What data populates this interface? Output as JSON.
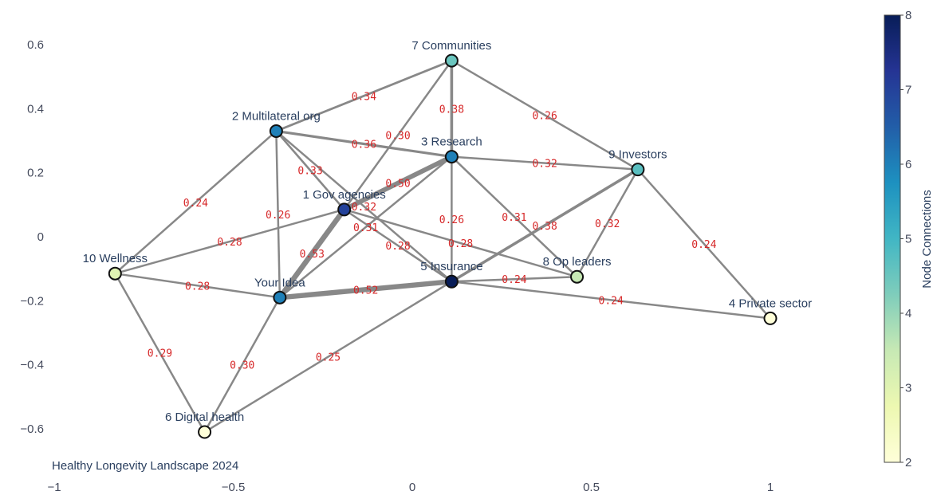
{
  "chart_data": {
    "type": "network",
    "annotation": "Healthy Longevity Landscape 2024",
    "xlim": [
      -1,
      1.15
    ],
    "ylim": [
      -0.68,
      0.68
    ],
    "xticks": [
      {
        "v": -1,
        "label": "−1"
      },
      {
        "v": -0.5,
        "label": "−0.5"
      },
      {
        "v": 0,
        "label": "0"
      },
      {
        "v": 0.5,
        "label": "0.5"
      },
      {
        "v": 1,
        "label": "1"
      }
    ],
    "yticks": [
      {
        "v": 0.6,
        "label": "0.6"
      },
      {
        "v": 0.4,
        "label": "0.4"
      },
      {
        "v": 0.2,
        "label": "0.2"
      },
      {
        "v": 0,
        "label": "0"
      },
      {
        "v": -0.2,
        "label": "−0.2"
      },
      {
        "v": -0.4,
        "label": "−0.4"
      },
      {
        "v": -0.6,
        "label": "−0.6"
      }
    ],
    "nodes": [
      {
        "id": "idea",
        "label": "Your Idea",
        "x": -0.37,
        "y": -0.19,
        "connections": 6
      },
      {
        "id": "gov",
        "label": "1 Gov agencies",
        "x": -0.19,
        "y": 0.085,
        "connections": 7
      },
      {
        "id": "multi",
        "label": "2 Multilateral org",
        "x": -0.38,
        "y": 0.33,
        "connections": 6
      },
      {
        "id": "research",
        "label": "3 Research",
        "x": 0.11,
        "y": 0.25,
        "connections": 6
      },
      {
        "id": "private",
        "label": "4 Private sector",
        "x": 1.0,
        "y": -0.255,
        "connections": 2
      },
      {
        "id": "insurance",
        "label": "5 Insurance",
        "x": 0.11,
        "y": -0.14,
        "connections": 8
      },
      {
        "id": "digital",
        "label": "6 Digital health",
        "x": -0.58,
        "y": -0.61,
        "connections": 2
      },
      {
        "id": "communities",
        "label": "7 Communities",
        "x": 0.11,
        "y": 0.55,
        "connections": 4.5
      },
      {
        "id": "opleaders",
        "label": "8 Op leaders",
        "x": 0.46,
        "y": -0.125,
        "connections": 3.5
      },
      {
        "id": "investors",
        "label": "9 Investors",
        "x": 0.63,
        "y": 0.21,
        "connections": 4.7
      },
      {
        "id": "wellness",
        "label": "10 Wellness",
        "x": -0.83,
        "y": -0.115,
        "connections": 3
      }
    ],
    "edges": [
      {
        "source": "multi",
        "target": "communities",
        "weight": 0.34,
        "label": "0.34"
      },
      {
        "source": "multi",
        "target": "research",
        "weight": 0.36,
        "label": "0.36"
      },
      {
        "source": "multi",
        "target": "gov",
        "weight": 0.33,
        "label": "0.33"
      },
      {
        "source": "multi",
        "target": "wellness",
        "weight": 0.24,
        "label": "0.24"
      },
      {
        "source": "multi",
        "target": "idea",
        "weight": 0.26,
        "label": "0.26"
      },
      {
        "source": "multi",
        "target": "insurance",
        "weight": 0.32,
        "label": "0.32"
      },
      {
        "source": "communities",
        "target": "research",
        "weight": 0.38,
        "label": "0.38"
      },
      {
        "source": "communities",
        "target": "gov",
        "weight": 0.3,
        "label": "0.30"
      },
      {
        "source": "communities",
        "target": "investors",
        "weight": 0.26,
        "label": "0.26"
      },
      {
        "source": "research",
        "target": "investors",
        "weight": 0.32,
        "label": "0.32"
      },
      {
        "source": "research",
        "target": "gov",
        "weight": 0.5,
        "label": "0.50"
      },
      {
        "source": "research",
        "target": "insurance",
        "weight": 0.26,
        "label": "0.26"
      },
      {
        "source": "research",
        "target": "opleaders",
        "weight": 0.31,
        "label": "0.31"
      },
      {
        "source": "research",
        "target": "idea",
        "weight": 0.31,
        "label": "0.31"
      },
      {
        "source": "gov",
        "target": "idea",
        "weight": 0.53,
        "label": "0.53"
      },
      {
        "source": "gov",
        "target": "wellness",
        "weight": 0.28,
        "label": "0.28"
      },
      {
        "source": "gov",
        "target": "opleaders",
        "weight": 0.28,
        "label": "0.28"
      },
      {
        "source": "gov",
        "target": "insurance",
        "weight": 0.28,
        "label": "0.28"
      },
      {
        "source": "investors",
        "target": "insurance",
        "weight": 0.38,
        "label": "0.38"
      },
      {
        "source": "investors",
        "target": "opleaders",
        "weight": 0.32,
        "label": "0.32"
      },
      {
        "source": "investors",
        "target": "private",
        "weight": 0.24,
        "label": "0.24"
      },
      {
        "source": "insurance",
        "target": "idea",
        "weight": 0.52,
        "label": "0.52"
      },
      {
        "source": "insurance",
        "target": "opleaders",
        "weight": 0.24,
        "label": "0.24"
      },
      {
        "source": "insurance",
        "target": "private",
        "weight": 0.24,
        "label": "0.24"
      },
      {
        "source": "insurance",
        "target": "digital",
        "weight": 0.25,
        "label": "0.25"
      },
      {
        "source": "wellness",
        "target": "idea",
        "weight": 0.28,
        "label": "0.28"
      },
      {
        "source": "wellness",
        "target": "digital",
        "weight": 0.29,
        "label": "0.29"
      },
      {
        "source": "idea",
        "target": "digital",
        "weight": 0.3,
        "label": "0.30"
      }
    ],
    "edge_color": "#888888",
    "edge_label_color": "#d62728",
    "colorbar": {
      "title": "Node Connections",
      "min": 2,
      "max": 8,
      "ticks": [
        {
          "v": 2,
          "label": "2"
        },
        {
          "v": 3,
          "label": "3"
        },
        {
          "v": 4,
          "label": "4"
        },
        {
          "v": 5,
          "label": "5"
        },
        {
          "v": 6,
          "label": "6"
        },
        {
          "v": 7,
          "label": "7"
        },
        {
          "v": 8,
          "label": "8"
        }
      ],
      "colorscale": "YlGnBu",
      "colors": [
        "#ffffd9",
        "#edf8b1",
        "#c7e9b4",
        "#7fcdbb",
        "#41b6c4",
        "#1d91c0",
        "#225ea8",
        "#253494",
        "#081d58"
      ]
    }
  }
}
